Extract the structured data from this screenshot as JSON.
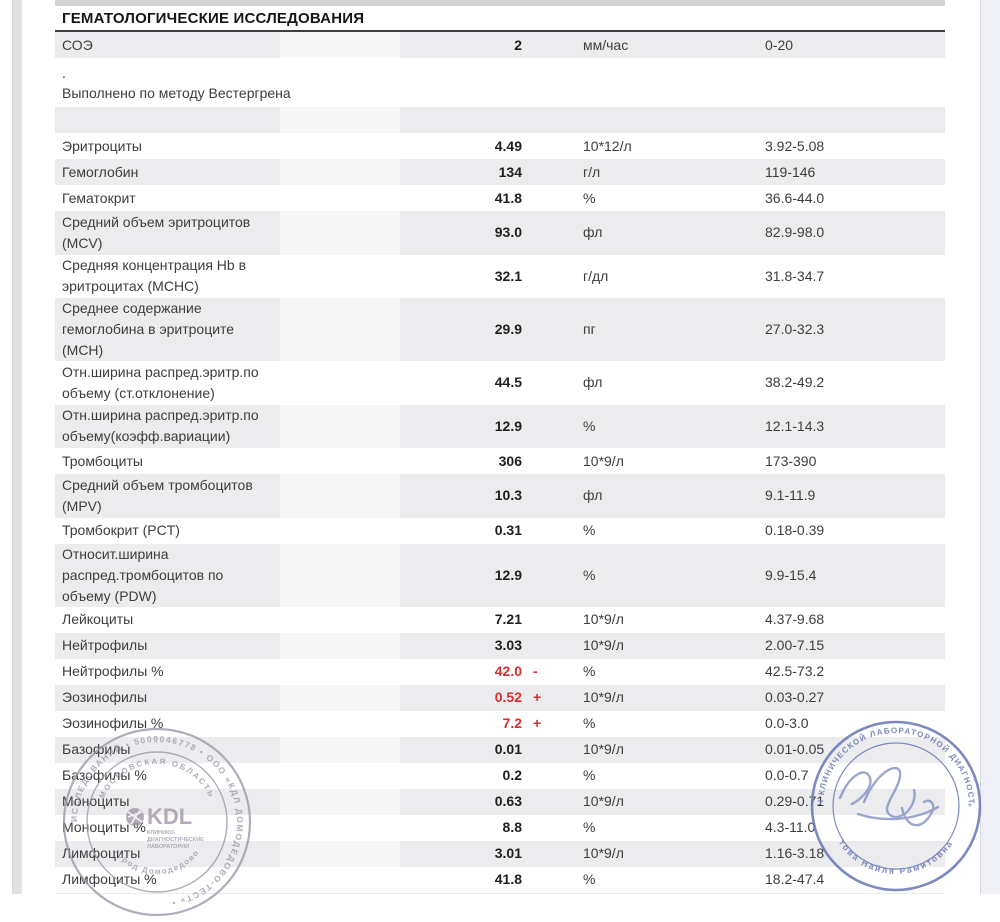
{
  "header": {
    "section_title": "ГЕМАТОЛОГИЧЕСКИЕ ИССЛЕДОВАНИЯ"
  },
  "table": {
    "rows": [
      {
        "name": "СОЭ",
        "value": "2",
        "flag": "",
        "unit": "мм/час",
        "ref": "0-20",
        "shaded": true,
        "alert": false
      },
      {
        "type": "note",
        "text": ".\nВыполнено по методу Вестергрена"
      },
      {
        "type": "spacer"
      },
      {
        "name": "Эритроциты",
        "value": "4.49",
        "flag": "",
        "unit": "10*12/л",
        "ref": "3.92-5.08",
        "shaded": false,
        "alert": false
      },
      {
        "name": "Гемоглобин",
        "value": "134",
        "flag": "",
        "unit": "г/л",
        "ref": "119-146",
        "shaded": true,
        "alert": false
      },
      {
        "name": "Гематокрит",
        "value": "41.8",
        "flag": "",
        "unit": "%",
        "ref": "36.6-44.0",
        "shaded": false,
        "alert": false
      },
      {
        "name": "Средний объем эритроцитов\n(MCV)",
        "value": "93.0",
        "flag": "",
        "unit": "фл",
        "ref": "82.9-98.0",
        "shaded": true,
        "alert": false
      },
      {
        "name": "Средняя концентрация Hb в\nэритроцитах (MCHC)",
        "value": "32.1",
        "flag": "",
        "unit": "г/дл",
        "ref": "31.8-34.7",
        "shaded": false,
        "alert": false
      },
      {
        "name": "Среднее содержание\nгемоглобина в эритроците\n(MCH)",
        "value": "29.9",
        "flag": "",
        "unit": "пг",
        "ref": "27.0-32.3",
        "shaded": true,
        "alert": false
      },
      {
        "name": "Отн.ширина распред.эритр.по\nобъему (ст.отклонение)",
        "value": "44.5",
        "flag": "",
        "unit": "фл",
        "ref": "38.2-49.2",
        "shaded": false,
        "alert": false
      },
      {
        "name": "Отн.ширина распред.эритр.по\nобъему(коэфф.вариации)",
        "value": "12.9",
        "flag": "",
        "unit": "%",
        "ref": "12.1-14.3",
        "shaded": true,
        "alert": false
      },
      {
        "name": "Тромбоциты",
        "value": "306",
        "flag": "",
        "unit": "10*9/л",
        "ref": "173-390",
        "shaded": false,
        "alert": false
      },
      {
        "name": "Средний объем тромбоцитов\n(MPV)",
        "value": "10.3",
        "flag": "",
        "unit": "фл",
        "ref": "9.1-11.9",
        "shaded": true,
        "alert": false
      },
      {
        "name": "Тромбокрит (PCT)",
        "value": "0.31",
        "flag": "",
        "unit": "%",
        "ref": "0.18-0.39",
        "shaded": false,
        "alert": false
      },
      {
        "name": "Относит.ширина\nраспред.тромбоцитов по\nобъему (PDW)",
        "value": "12.9",
        "flag": "",
        "unit": "%",
        "ref": "9.9-15.4",
        "shaded": true,
        "alert": false
      },
      {
        "name": "Лейкоциты",
        "value": "7.21",
        "flag": "",
        "unit": "10*9/л",
        "ref": "4.37-9.68",
        "shaded": false,
        "alert": false
      },
      {
        "name": "Нейтрофилы",
        "value": "3.03",
        "flag": "",
        "unit": "10*9/л",
        "ref": "2.00-7.15",
        "shaded": true,
        "alert": false
      },
      {
        "name": "Нейтрофилы %",
        "value": "42.0",
        "flag": "-",
        "unit": "%",
        "ref": "42.5-73.2",
        "shaded": false,
        "alert": true
      },
      {
        "name": "Эозинофилы",
        "value": "0.52",
        "flag": "+",
        "unit": "10*9/л",
        "ref": "0.03-0.27",
        "shaded": true,
        "alert": true
      },
      {
        "name": "Эозинофилы %",
        "value": "7.2",
        "flag": "+",
        "unit": "%",
        "ref": "0.0-3.0",
        "shaded": false,
        "alert": true
      },
      {
        "name": "Базофилы",
        "value": "0.01",
        "flag": "",
        "unit": "10*9/л",
        "ref": "0.01-0.05",
        "shaded": true,
        "alert": false
      },
      {
        "name": "Базофилы %",
        "value": "0.2",
        "flag": "",
        "unit": "%",
        "ref": "0.0-0.7",
        "shaded": false,
        "alert": false
      },
      {
        "name": "Моноциты",
        "value": "0.63",
        "flag": "",
        "unit": "10*9/л",
        "ref": "0.29-0.71",
        "shaded": true,
        "alert": false
      },
      {
        "name": "Моноциты %",
        "value": "8.8",
        "flag": "",
        "unit": "%",
        "ref": "4.3-11.0",
        "shaded": false,
        "alert": false
      },
      {
        "name": "Лимфоциты",
        "value": "3.01",
        "flag": "",
        "unit": "10*9/л",
        "ref": "1.16-3.18",
        "shaded": true,
        "alert": false
      },
      {
        "name": "Лимфоциты %",
        "value": "41.8",
        "flag": "",
        "unit": "%",
        "ref": "18.2-47.4",
        "shaded": false,
        "alert": false
      }
    ]
  },
  "stamps": {
    "kdl": {
      "ring_text": "ИССЛЕДОВАНИЙ  •  5009046778  •  ООО «КДЛ ДОМОДЕДОВО-ТЕСТ»  •",
      "inner_top_arc": "МОСКОВСКАЯ ОБЛАСТЬ",
      "inner_bottom_arc": "город Домодедово",
      "logo": "KDL",
      "logo_sub1": "КЛИНИКО-",
      "logo_sub2": "ДИАГНОСТИЧЕСКИЕ",
      "logo_sub3": "ЛАБОРАТОРИИ",
      "color": "#9e94a6"
    },
    "doctor": {
      "top_arc": "ВРАЧ КЛИНИЧЕСКОЙ ЛАБОРАТОРНОЙ ДИАГНОСТИКИ",
      "bottom_arc": "това  Найля  Рамитовна",
      "color": "#6b7ab8"
    }
  },
  "colors": {
    "row_shade": "#ececee",
    "alert_value": "#d32f30",
    "top_bar": "#d3d3d5"
  }
}
